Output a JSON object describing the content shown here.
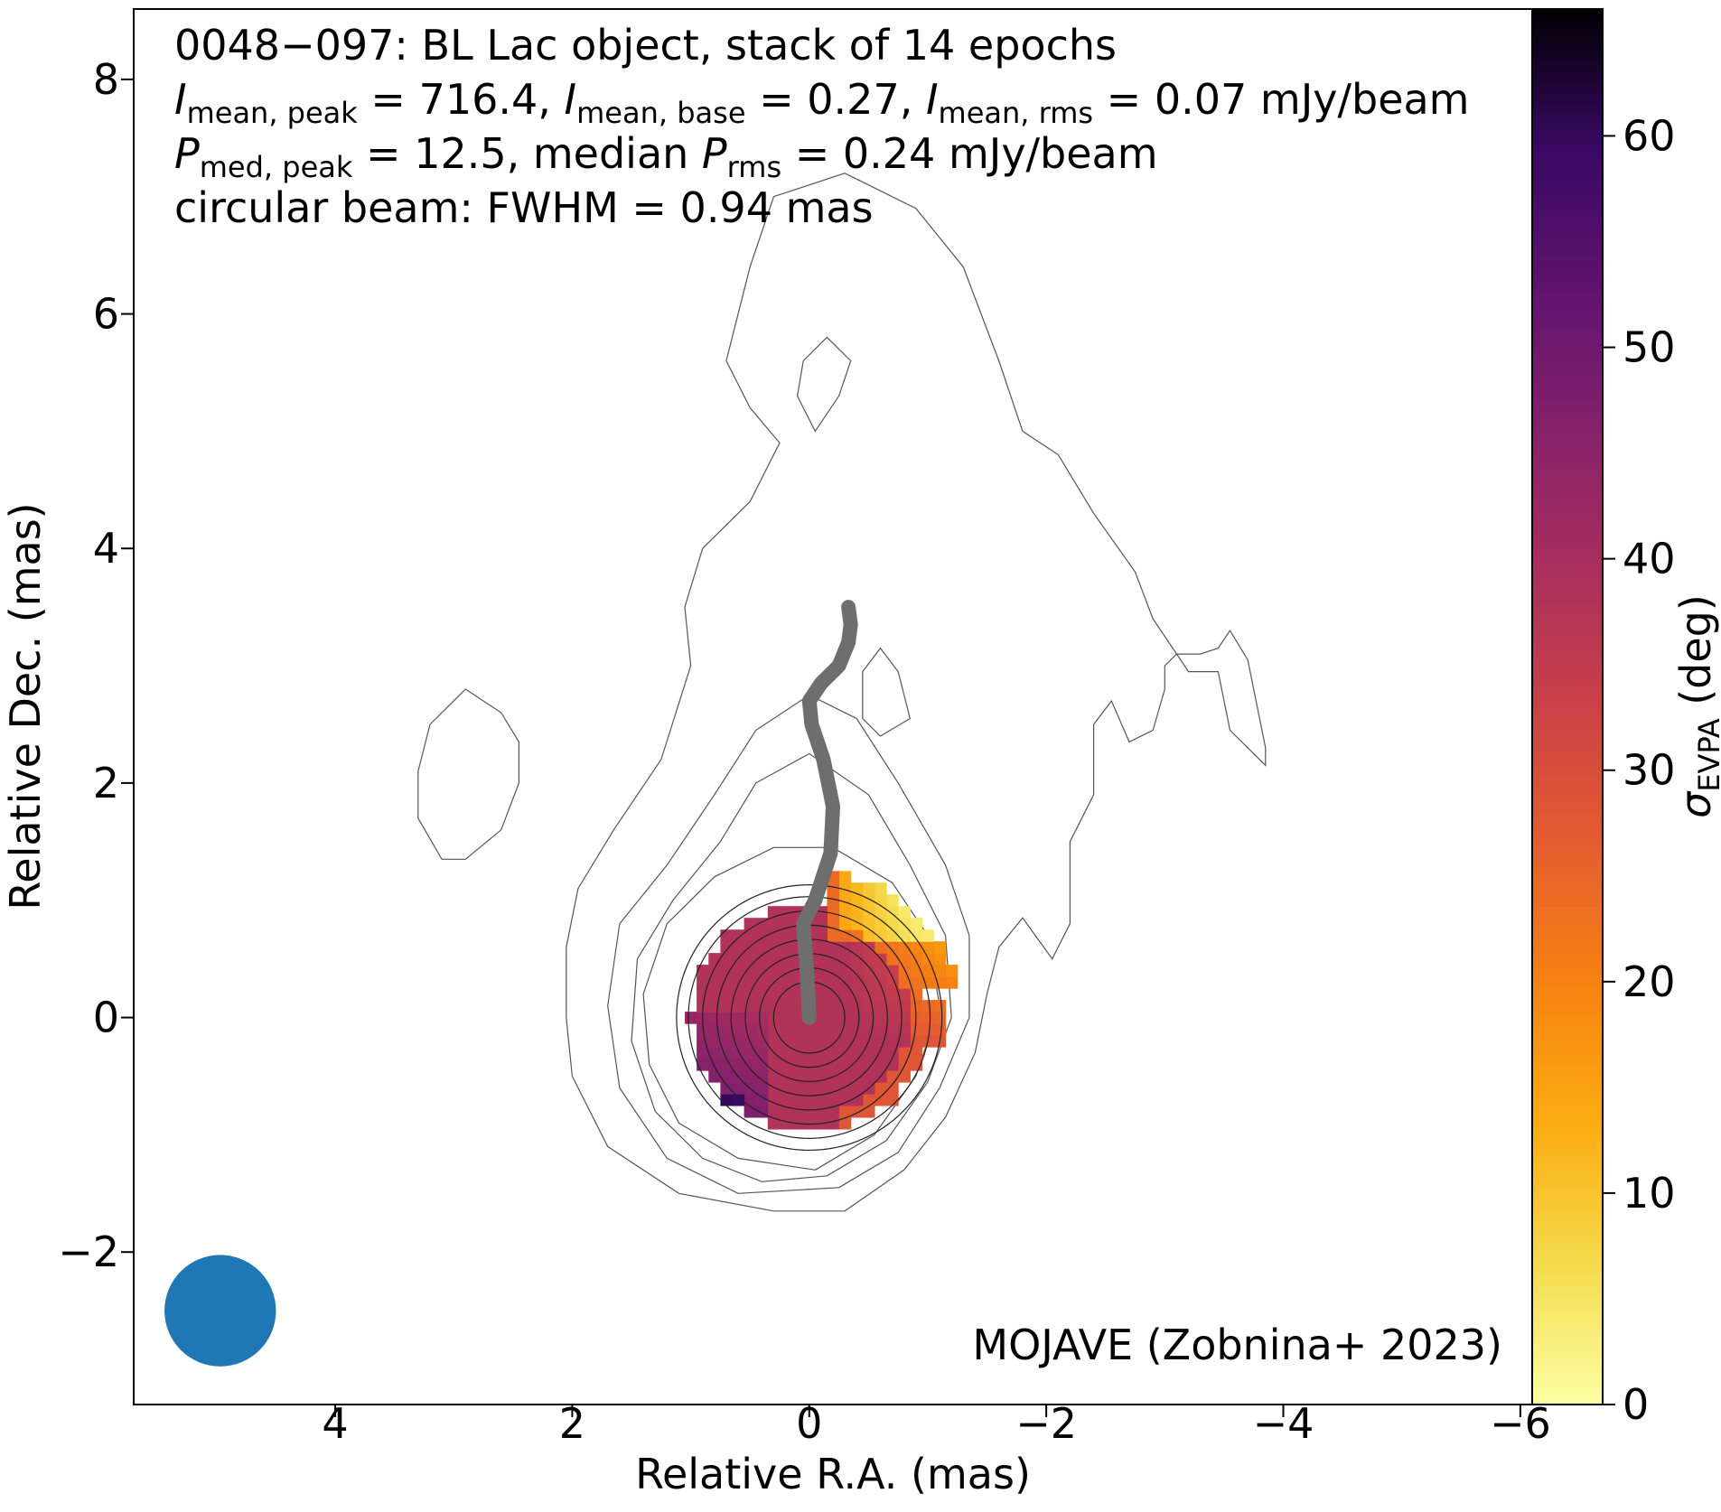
{
  "chart_data": {
    "type": "heatmap",
    "title_lines": [
      {
        "pre": "0048−097: BL Lac object, stack of 14 epochs"
      },
      {
        "parts": [
          {
            "t": "I",
            "italic": true
          },
          {
            "t": "mean, peak",
            "sub": true
          },
          {
            "t": " = 716.4, "
          },
          {
            "t": "I",
            "italic": true
          },
          {
            "t": "mean, base",
            "sub": true
          },
          {
            "t": " = 0.27, "
          },
          {
            "t": "I",
            "italic": true
          },
          {
            "t": "mean, rms",
            "sub": true
          },
          {
            "t": " = 0.07 mJy/beam"
          }
        ]
      },
      {
        "parts": [
          {
            "t": "P",
            "italic": true
          },
          {
            "t": "med, peak",
            "sub": true
          },
          {
            "t": " = 12.5, median "
          },
          {
            "t": "P",
            "italic": true
          },
          {
            "t": "rms",
            "sub": true
          },
          {
            "t": " = 0.24 mJy/beam"
          }
        ]
      },
      {
        "pre": "circular beam: FWHM = 0.94 mas"
      }
    ],
    "xlabel": "Relative R.A. (mas)",
    "ylabel": "Relative Dec. (mas)",
    "xlim": [
      5.7,
      -6.1
    ],
    "ylim": [
      -3.3,
      8.6
    ],
    "xticks": [
      4,
      2,
      0,
      -2,
      -4,
      -6
    ],
    "xtick_labels": [
      "4",
      "2",
      "0",
      "−2",
      "−4",
      "−6"
    ],
    "yticks": [
      -2,
      0,
      2,
      4,
      6,
      8
    ],
    "ytick_labels": [
      "−2",
      "0",
      "2",
      "4",
      "6",
      "8"
    ],
    "colorbar": {
      "label_symbol": "σ",
      "label_sub": "EVPA",
      "label_unit": " (deg)",
      "range": [
        0,
        66
      ],
      "ticks": [
        0,
        10,
        20,
        30,
        40,
        50,
        60
      ],
      "tick_labels": [
        "0",
        "10",
        "20",
        "30",
        "40",
        "50",
        "60"
      ],
      "colormap": "inferno_r"
    },
    "credit": "MOJAVE (Zobnina+ 2023)",
    "beam": {
      "ra": 4.97,
      "dec": -2.5,
      "fwhm": 0.94,
      "color": "#1f77b4"
    },
    "ridge_line": {
      "color": "#6e6e6e",
      "points": [
        [
          0.0,
          0.0
        ],
        [
          0.02,
          0.4
        ],
        [
          0.05,
          0.8
        ],
        [
          -0.05,
          1.0
        ],
        [
          -0.18,
          1.4
        ],
        [
          -0.2,
          1.8
        ],
        [
          -0.12,
          2.2
        ],
        [
          -0.02,
          2.5
        ],
        [
          0.0,
          2.7
        ],
        [
          -0.1,
          2.85
        ],
        [
          -0.25,
          3.0
        ],
        [
          -0.33,
          3.2
        ],
        [
          -0.35,
          3.35
        ],
        [
          -0.33,
          3.5
        ]
      ]
    },
    "contour_levels_rings": [
      0.3,
      0.42,
      0.54,
      0.66,
      0.78,
      0.9,
      1.02,
      1.12
    ],
    "sigma_evpa_field": {
      "pixel_mas": 0.1,
      "disk_radius": 1.0,
      "center_value": 38
    }
  }
}
